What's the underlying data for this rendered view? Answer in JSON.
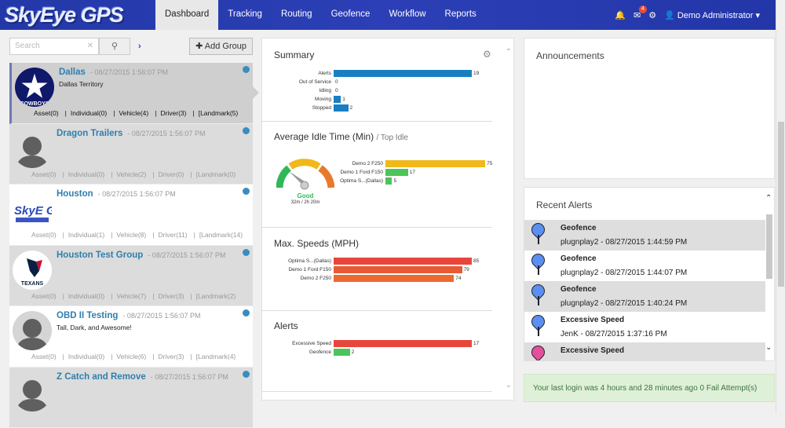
{
  "nav": {
    "logo": "SkyEye GPS",
    "tabs": [
      "Dashboard",
      "Tracking",
      "Routing",
      "Geofence",
      "Workflow",
      "Reports"
    ],
    "active_tab": "Dashboard",
    "mail_badge": "4",
    "user": "Demo Administrator"
  },
  "left": {
    "search_placeholder": "Search",
    "add_group": "Add Group",
    "groups": [
      {
        "name": "Dallas",
        "date": "- 08/27/2015 1:56:07 PM",
        "desc": "Dallas Territory",
        "avatar": "cowboys",
        "counts": [
          "Asset(0)",
          "Individual(0)",
          "Vehicle(4)",
          "Driver(3)",
          "[Landmark(5)"
        ]
      },
      {
        "name": "Dragon Trailers",
        "date": "- 08/27/2015 1:56:07 PM",
        "desc": "",
        "avatar": "person",
        "counts": [
          "Asset(0)",
          "Individual(0)",
          "Vehicle(2)",
          "Driver(0)",
          "[Landmark(0)"
        ]
      },
      {
        "name": "Houston",
        "date": "- 08/27/2015 1:56:07 PM",
        "desc": "",
        "avatar": "skyeye",
        "counts": [
          "Asset(0)",
          "Individual(1)",
          "Vehicle(8)",
          "Driver(11)",
          "[Landmark(14)"
        ]
      },
      {
        "name": "Houston Test Group",
        "date": "- 08/27/2015 1:56:07 PM",
        "desc": "",
        "avatar": "texans",
        "counts": [
          "Asset(0)",
          "Individual(0)",
          "Vehicle(7)",
          "Driver(3)",
          "[Landmark(2)"
        ]
      },
      {
        "name": "OBD II Testing",
        "date": "- 08/27/2015 1:56:07 PM",
        "desc": "Tall, Dark, and Awesome!",
        "avatar": "person",
        "counts": [
          "Asset(0)",
          "Individual(0)",
          "Vehicle(6)",
          "Driver(3)",
          "[Landmark(4)"
        ]
      },
      {
        "name": "Z Catch and Remove",
        "date": "- 08/27/2015 1:56:07 PM",
        "desc": "",
        "avatar": "person",
        "counts": []
      }
    ]
  },
  "mid": {
    "summary_title": "Summary",
    "idle_title": "Average Idle Time (Min)",
    "idle_sub": "/ Top Idle",
    "gauge_label": "Good",
    "gauge_sub": "32m / 2h 20m",
    "speed_title": "Max. Speeds (MPH)",
    "alerts_title": "Alerts"
  },
  "chart_data": [
    {
      "type": "bar",
      "title": "Summary",
      "categories": [
        "Alerts",
        "Out of Service",
        "Idling",
        "Moving",
        "Stopped"
      ],
      "values": [
        19,
        0,
        0,
        1,
        2
      ],
      "colors": [
        "#1a7fc1"
      ],
      "xlim": [
        0,
        19
      ]
    },
    {
      "type": "bar",
      "title": "Average Idle Time (Min)",
      "categories": [
        "Demo 2 F250",
        "Demo 1 Ford F150",
        "Optima S...(Dallas)"
      ],
      "values": [
        75,
        17,
        5
      ],
      "colors": [
        "#f0b81a",
        "#4cc45a",
        "#4cc45a"
      ],
      "xlim": [
        0,
        75
      ]
    },
    {
      "type": "bar",
      "title": "Max. Speeds (MPH)",
      "categories": [
        "Optima S...(Dallas)",
        "Demo 1 Ford F150",
        "Demo 2 F250"
      ],
      "values": [
        85,
        79,
        74
      ],
      "colors": [
        "#e8463a",
        "#e85a35",
        "#ec6a30"
      ],
      "xlim": [
        0,
        85
      ]
    },
    {
      "type": "bar",
      "title": "Alerts",
      "categories": [
        "Excessive Speed",
        "Geofence"
      ],
      "values": [
        17,
        2
      ],
      "colors": [
        "#e8463a",
        "#4cc45a"
      ],
      "xlim": [
        0,
        17
      ]
    }
  ],
  "right": {
    "announcements": "Announcements",
    "recent_alerts": "Recent Alerts",
    "alerts": [
      {
        "type": "Geofence",
        "sub": "plugnplay2 - 08/27/2015 1:44:59 PM",
        "color": "#5b8ff0"
      },
      {
        "type": "Geofence",
        "sub": "plugnplay2 - 08/27/2015 1:44:07 PM",
        "color": "#5b8ff0"
      },
      {
        "type": "Geofence",
        "sub": "plugnplay2 - 08/27/2015 1:40:24 PM",
        "color": "#5b8ff0"
      },
      {
        "type": "Excessive Speed",
        "sub": "JenK - 08/27/2015 1:37:16 PM",
        "color": "#5b8ff0"
      },
      {
        "type": "Excessive Speed",
        "sub": "",
        "color": "#e6509a"
      }
    ],
    "login_msg": "Your last login was 4 hours and 28 minutes ago 0 Fail Attempt(s)"
  }
}
